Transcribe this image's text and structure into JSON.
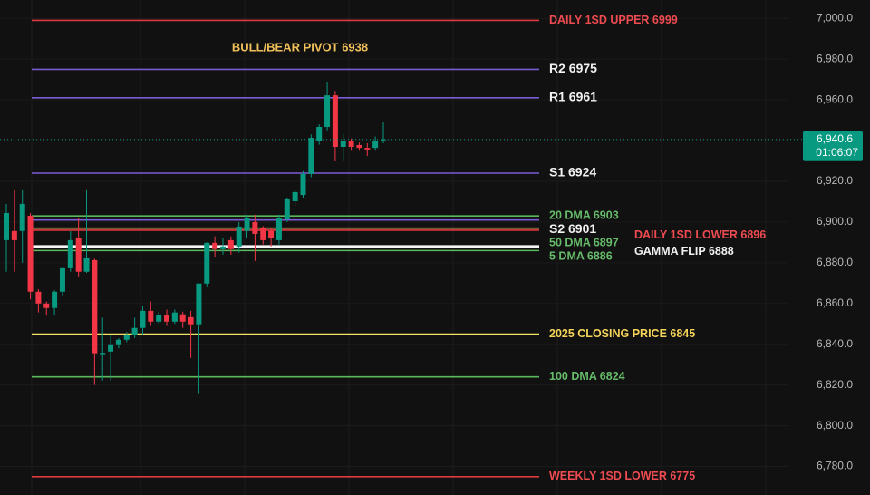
{
  "chart_data": {
    "type": "candlestick",
    "ylim": [
      6766,
      7009
    ],
    "yticks": [
      {
        "value": 7000,
        "label": "7,000.0"
      },
      {
        "value": 6980,
        "label": "6,980.0"
      },
      {
        "value": 6960,
        "label": "6,960.0"
      },
      {
        "value": 6940,
        "label": "6,940.0"
      },
      {
        "value": 6920,
        "label": "6,920.0"
      },
      {
        "value": 6900,
        "label": "6,900.0"
      },
      {
        "value": 6880,
        "label": "6,880.0"
      },
      {
        "value": 6860,
        "label": "6,860.0"
      },
      {
        "value": 6840,
        "label": "6,840.0"
      },
      {
        "value": 6820,
        "label": "6,820.0"
      },
      {
        "value": 6800,
        "label": "6,800.0"
      },
      {
        "value": 6780,
        "label": "6,780.0"
      }
    ],
    "grid": true,
    "up_color": "#089981",
    "down_color": "#f23645",
    "open": [
      6891.1,
      6895.6,
      6895.6,
      6903.1,
      6865.8,
      6860,
      6857.8,
      6865.8,
      6877.3,
      6892.4,
      6875.6,
      6881.3,
      6834.7,
      6836.4,
      6840,
      6842.2,
      6844.4,
      6848,
      6856.4,
      6851.1,
      6854.2,
      6851.1,
      6854.7,
      6853.3,
      6849.8,
      6869.8,
      6889.8,
      6886.7,
      6891.1,
      6888,
      6895.6,
      6900,
      6896.9,
      6895.6,
      6891.1,
      6901.3,
      6910.2,
      6913.3,
      6923.6,
      6940,
      6946.7,
      6962.2,
      6936.9,
      6940,
      6937.8,
      6936.4,
      6936.4,
      6940.6
    ],
    "high": [
      6908.9,
      6915.6,
      6915.6,
      6904.4,
      6867,
      6861,
      6866.5,
      6878,
      6895.6,
      6902.2,
      6915.6,
      6882,
      6853,
      6844.4,
      6843,
      6846,
      6853,
      6859,
      6861,
      6856,
      6857,
      6857,
      6856,
      6856.4,
      6869.8,
      6890,
      6893,
      6892,
      6893,
      6900,
      6903.6,
      6903.6,
      6898,
      6897,
      6903.6,
      6912,
      6915.6,
      6925,
      6943,
      6948,
      6968.9,
      6964.4,
      6943.1,
      6941,
      6939,
      6938.7,
      6942,
      6948.9
    ],
    "low": [
      6875.6,
      6875.6,
      6880,
      6862,
      6855.6,
      6854,
      6854,
      6864,
      6875.6,
      6873.3,
      6875,
      6820,
      6822.2,
      6822.2,
      6838,
      6841,
      6843,
      6844.4,
      6849,
      6850,
      6849,
      6850,
      6848,
      6833.3,
      6815.6,
      6868,
      6883,
      6884,
      6884,
      6885,
      6892,
      6880.9,
      6889,
      6888,
      6889,
      6900,
      6908,
      6912,
      6922,
      6938,
      6945,
      6929.8,
      6929.8,
      6935,
      6935,
      6932.4,
      6935,
      6938.7
    ],
    "close": [
      6904.4,
      6891.1,
      6908.9,
      6865.8,
      6860,
      6857.8,
      6865.8,
      6877.3,
      6891.1,
      6875.6,
      6882.2,
      6835.6,
      6835.8,
      6840,
      6842.2,
      6844.4,
      6848,
      6856.4,
      6851.1,
      6854.2,
      6851.1,
      6855.6,
      6851.1,
      6849.8,
      6869.8,
      6889.8,
      6886.7,
      6888,
      6886.7,
      6897.8,
      6902.2,
      6894.2,
      6891.1,
      6892.4,
      6902.2,
      6911.1,
      6914.7,
      6923.6,
      6941.3,
      6946.7,
      6962.2,
      6936.9,
      6940,
      6936.9,
      6936.4,
      6935.6,
      6940,
      6940.6
    ],
    "levels": [
      {
        "label": "DAILY 1SD UPPER 6999",
        "value": 6999,
        "color": "#e0393e",
        "label_color": "#ef4b50"
      },
      {
        "label": "R2 6975",
        "value": 6975,
        "color": "#7b5bd6",
        "label_color": "#f2f2f2"
      },
      {
        "label": "R1 6961",
        "value": 6961,
        "color": "#7b5bd6",
        "label_color": "#f2f2f2"
      },
      {
        "label": "S1 6924",
        "value": 6924,
        "color": "#7b5bd6",
        "label_color": "#f2f2f2"
      },
      {
        "label": "20 DMA 6903",
        "value": 6903,
        "color": "#5cb85c",
        "label_color": "#66bb6a"
      },
      {
        "label": "S2 6901",
        "value": 6901,
        "color": "#7b5bd6",
        "label_color": "#f2f2f2"
      },
      {
        "label": "50 DMA 6897",
        "value": 6897,
        "color": "#c9a25a",
        "label_color": "#66bb6a"
      },
      {
        "label": "DAILY 1SD LOWER 6896",
        "value": 6896,
        "color": "#e0393e",
        "label_color": "#ef4b50"
      },
      {
        "label": "GAMMA FLIP 6888",
        "value": 6888,
        "color": "#f5f5f5",
        "label_color": "#f2f2f2"
      },
      {
        "label": "5 DMA 6886",
        "value": 6886,
        "color": "#5cb85c",
        "label_color": "#66bb6a"
      },
      {
        "label": "2025 CLOSING PRICE 6845",
        "value": 6845,
        "color": "#f3e26a",
        "label_color": "#f5d45a"
      },
      {
        "label": "100 DMA 6824",
        "value": 6824,
        "color": "#5cb85c",
        "label_color": "#66bb6a"
      },
      {
        "label": "WEEKLY 1SD LOWER 6775",
        "value": 6775,
        "color": "#e0393e",
        "label_color": "#ef4b50"
      }
    ],
    "annotation": "BULL/BEAR PIVOT 6938",
    "last_price": {
      "value": 6940.6,
      "label": "6,940.6"
    },
    "countdown": "01:06:07"
  }
}
